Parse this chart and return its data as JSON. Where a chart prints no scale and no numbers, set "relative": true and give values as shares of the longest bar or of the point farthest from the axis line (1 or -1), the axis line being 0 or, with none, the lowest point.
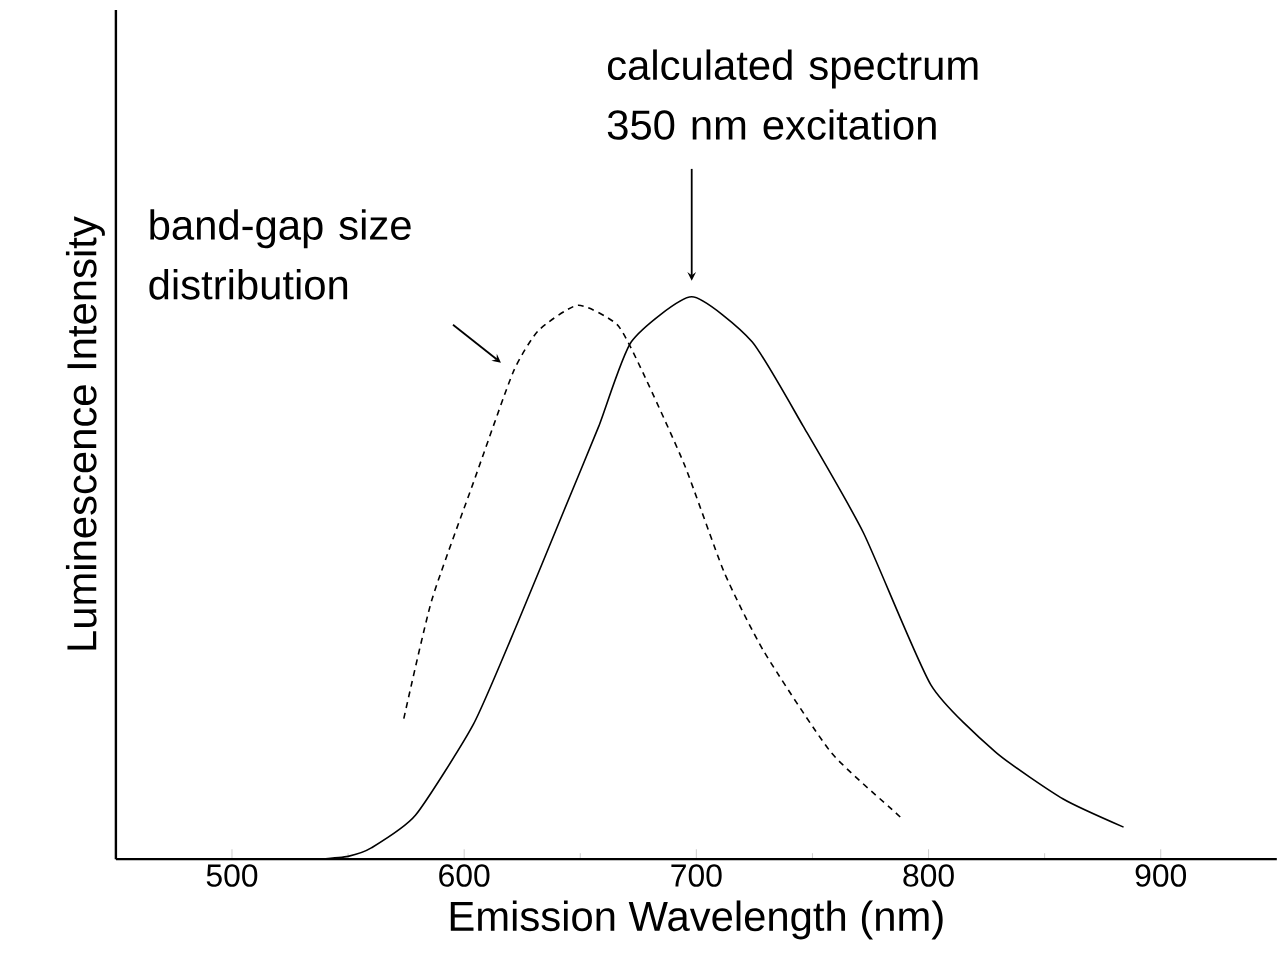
{
  "chart_data": {
    "type": "line",
    "relative": true,
    "xlabel": "Emission Wavelength (nm)",
    "ylabel": "Luminescence Intensity",
    "xlim": [
      450,
      950
    ],
    "xticks": [
      500,
      600,
      700,
      800,
      900
    ],
    "grid": false,
    "marker": "none",
    "series": [
      {
        "color": "#000000",
        "line_style": "solid",
        "x": [
          538,
          550,
          560,
          579,
          604,
          623,
          643,
          658,
          672,
          698,
          724,
          746,
          772,
          801,
          829,
          858,
          884
        ],
        "values": [
          0,
          0.005,
          0.02,
          0.078,
          0.24,
          0.42,
          0.62,
          0.77,
          0.92,
          1.0,
          0.92,
          0.77,
          0.58,
          0.31,
          0.19,
          0.107,
          0.057
        ]
      },
      {
        "color": "#000000",
        "line_style": "dashed",
        "x": [
          574,
          586,
          604,
          621,
          632,
          649,
          666,
          677,
          695,
          712,
          729,
          758,
          786,
          789
        ],
        "values": [
          0.25,
          0.46,
          0.67,
          0.865,
          0.94,
          0.985,
          0.95,
          0.865,
          0.7,
          0.51,
          0.37,
          0.19,
          0.082,
          0.07
        ]
      }
    ],
    "annotations": [
      "calculated spectrum 350 nm excitation",
      "band-gap size distribution"
    ]
  }
}
